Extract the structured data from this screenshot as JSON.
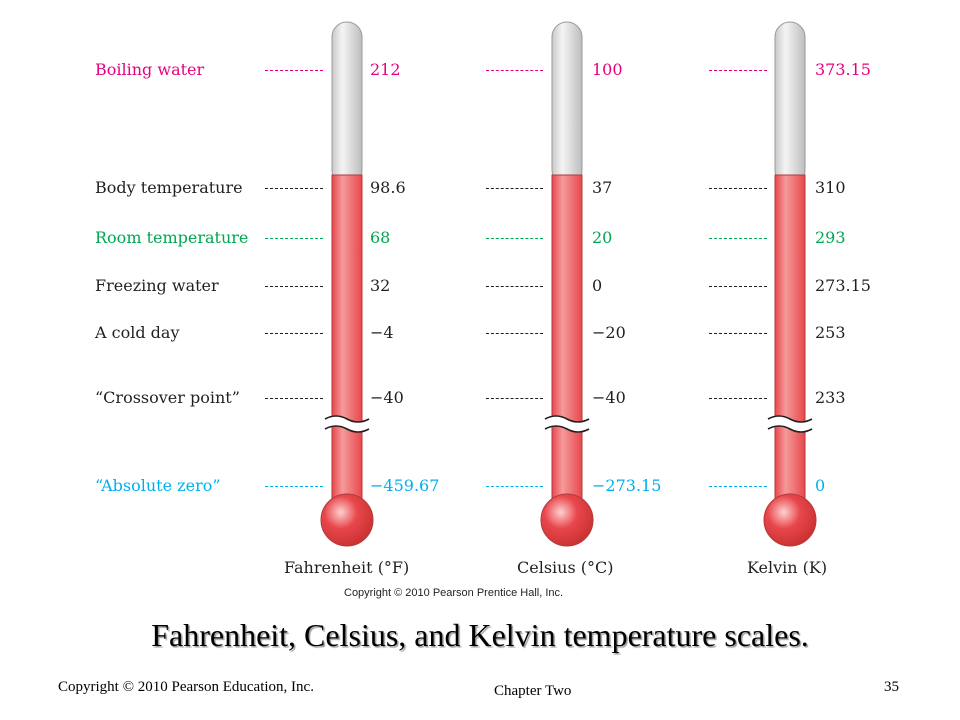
{
  "colors": {
    "boiling": "#e6007e",
    "room": "#00a651",
    "absolute": "#00aeef",
    "default": "#231f20",
    "mercury": "#e8474c",
    "mercury_light": "#f49a9a",
    "glass": "#dcdcdc"
  },
  "reference_points": [
    {
      "key": "boiling",
      "label": "Boiling water",
      "color_key": "boiling"
    },
    {
      "key": "body",
      "label": "Body temperature",
      "color_key": "default"
    },
    {
      "key": "room",
      "label": "Room temperature",
      "color_key": "room"
    },
    {
      "key": "freezing",
      "label": "Freezing water",
      "color_key": "default"
    },
    {
      "key": "cold",
      "label": "A cold day",
      "color_key": "default"
    },
    {
      "key": "crossover",
      "label": "“Crossover point”",
      "color_key": "default"
    },
    {
      "key": "absolute",
      "label": "“Absolute zero”",
      "color_key": "absolute"
    }
  ],
  "scales": [
    {
      "name": "Fahrenheit (°F)",
      "values": [
        "212",
        "98.6",
        "68",
        "32",
        "−4",
        "−40",
        "−459.67"
      ]
    },
    {
      "name": "Celsius (°C)",
      "values": [
        "100",
        "37",
        "20",
        "0",
        "−20",
        "−40",
        "−273.15"
      ]
    },
    {
      "name": "Kelvin (K)",
      "values": [
        "373.15",
        "310",
        "293",
        "273.15",
        "253",
        "233",
        "0"
      ]
    }
  ],
  "figure_credit": "Copyright © 2010 Pearson Prentice Hall, Inc.",
  "slide_title": "Fahrenheit, Celsius, and Kelvin temperature scales.",
  "footer": {
    "copyright": "Copyright © 2010 Pearson Education, Inc.",
    "chapter": "Chapter Two",
    "page": "35"
  }
}
